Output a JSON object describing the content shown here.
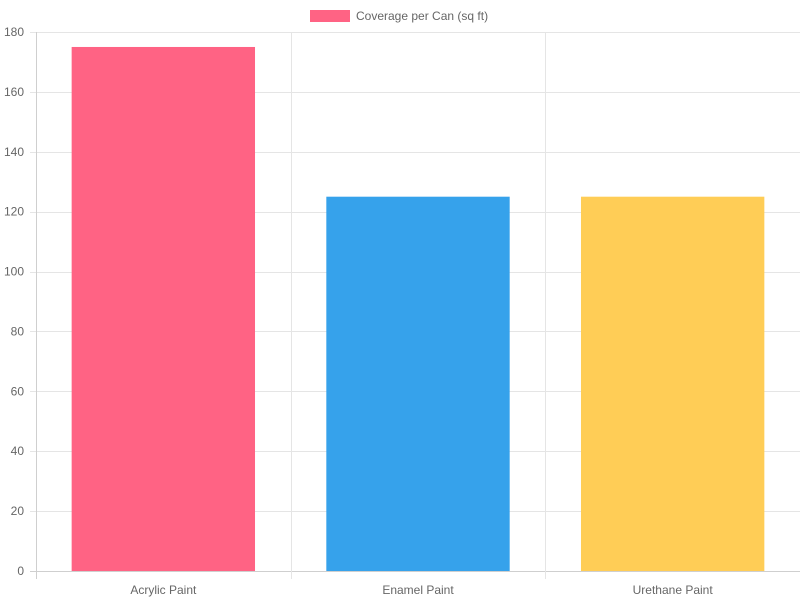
{
  "chart_data": {
    "type": "bar",
    "categories": [
      "Acrylic Paint",
      "Enamel Paint",
      "Urethane Paint"
    ],
    "series": [
      {
        "name": "Coverage per Can (sq ft)",
        "values": [
          175,
          125,
          125
        ],
        "colors": [
          "#ff6384",
          "#36a2eb",
          "#ffcd56"
        ]
      }
    ],
    "legend": {
      "position": "top",
      "swatch_color": "#ff6384"
    },
    "ylim": [
      0,
      180
    ],
    "yticks": [
      0,
      20,
      40,
      60,
      80,
      100,
      120,
      140,
      160,
      180
    ],
    "grid": true
  }
}
